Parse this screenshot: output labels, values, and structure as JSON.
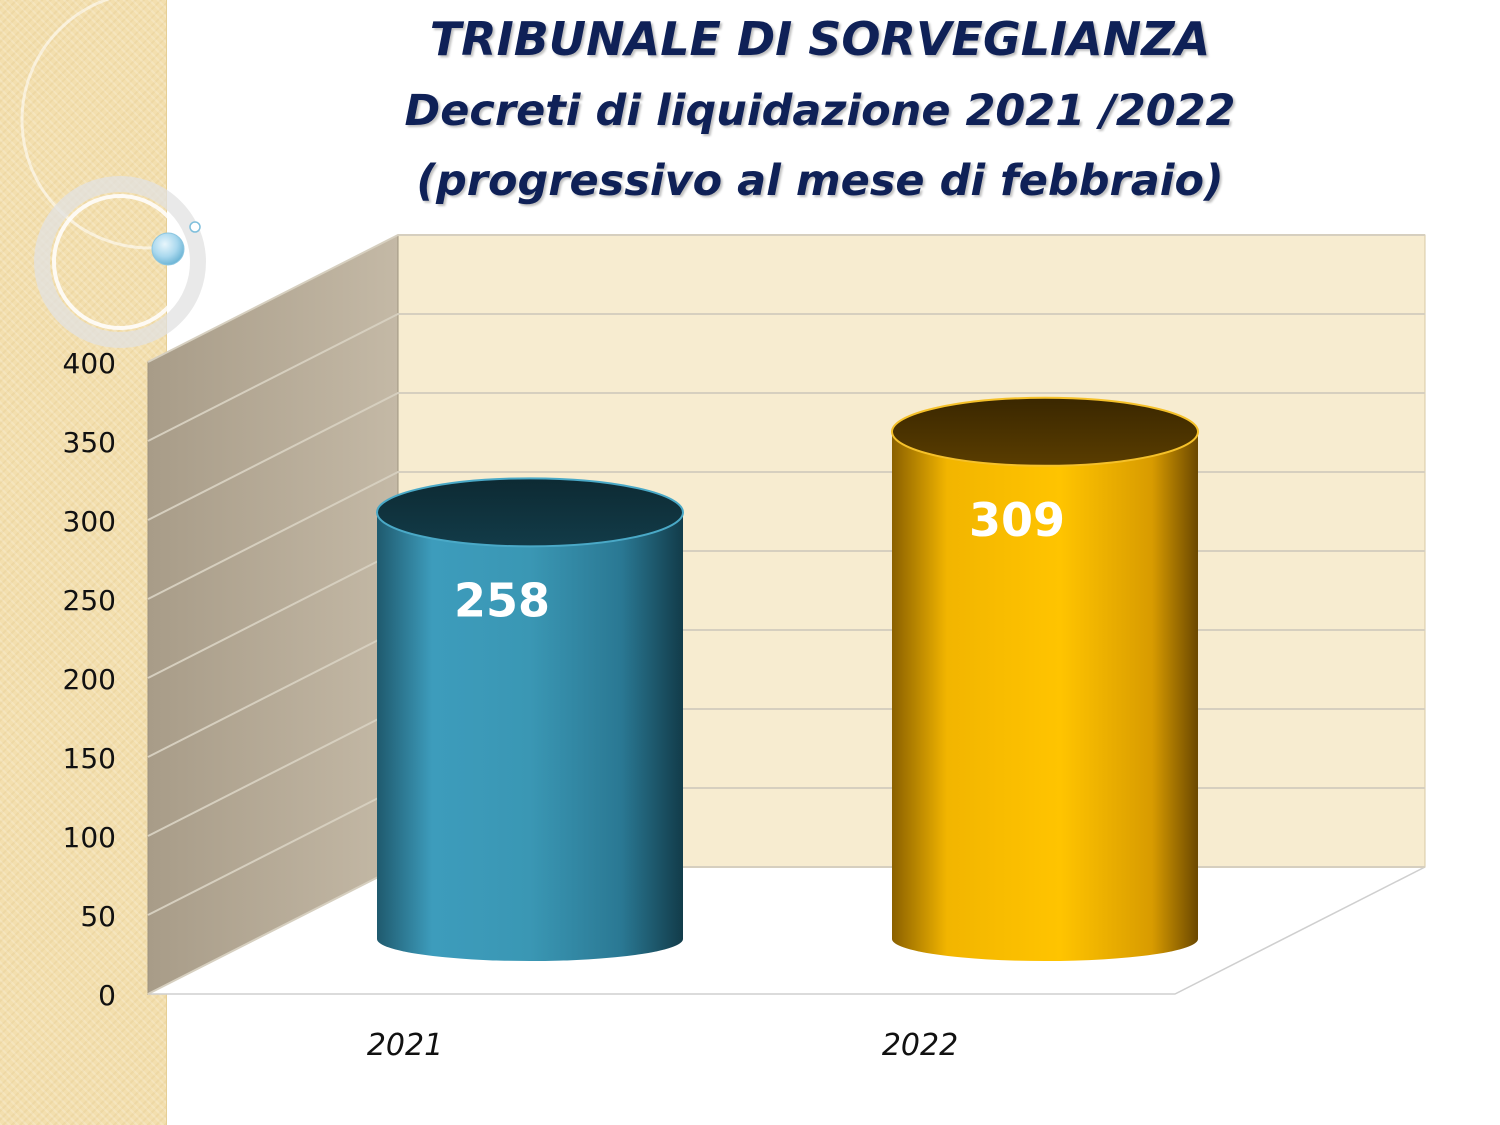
{
  "titles": {
    "line1": "TRIBUNALE DI SORVEGLIANZA",
    "line2": "Decreti di liquidazione 2021 /2022",
    "line3": "(progressivo al mese di febbraio)"
  },
  "colors": {
    "series_2021": "#3a97b4",
    "series_2022": "#f0b400",
    "title_text": "#0f2157",
    "back_wall": "#f7ecd0",
    "side_wall": "#b8ad9a"
  },
  "chart_data": {
    "type": "bar",
    "style": "3d-cylinder",
    "categories": [
      "2021",
      "2022"
    ],
    "values": [
      258,
      309
    ],
    "data_labels": [
      "258",
      "309"
    ],
    "title": "TRIBUNALE DI SORVEGLIANZA Decreti di liquidazione 2021 /2022 (progressivo al mese di febbraio)",
    "xlabel": "",
    "ylabel": "",
    "ylim": [
      0,
      400
    ],
    "yticks": [
      "0",
      "50",
      "100",
      "150",
      "200",
      "250",
      "300",
      "350",
      "400"
    ],
    "grid": true,
    "legend": "none"
  }
}
